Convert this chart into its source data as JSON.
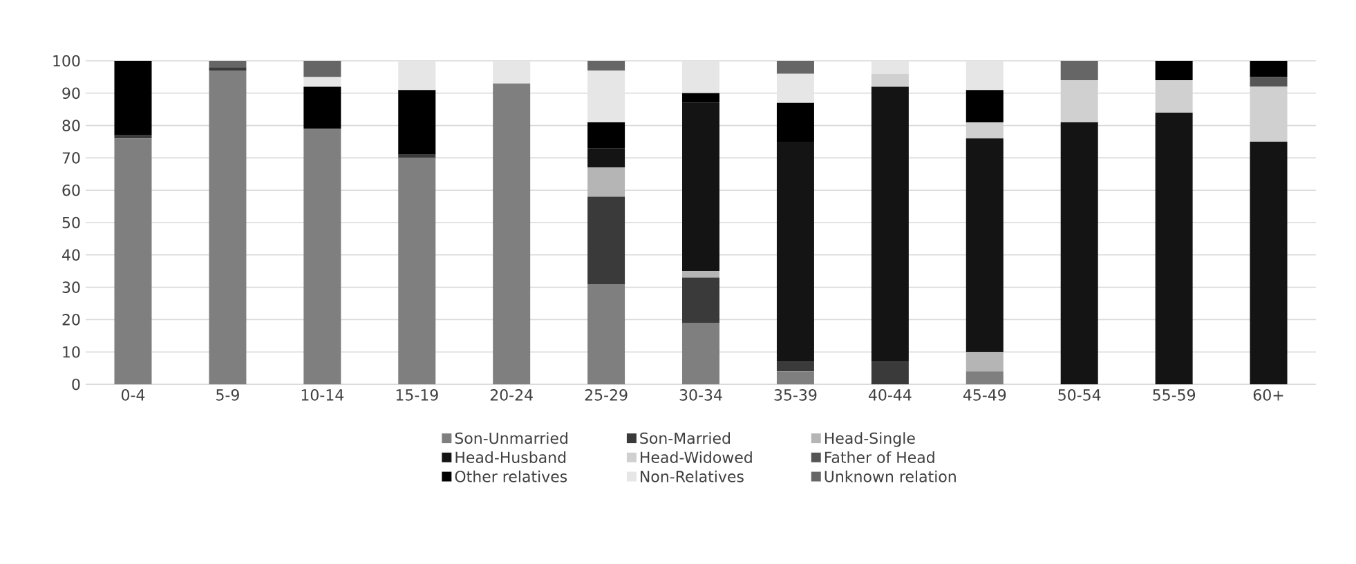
{
  "chart_data": {
    "type": "bar",
    "stacked": true,
    "categories": [
      "0-4",
      "5-9",
      "10-14",
      "15-19",
      "20-24",
      "25-29",
      "30-34",
      "35-39",
      "40-44",
      "45-49",
      "50-54",
      "55-59",
      "60+"
    ],
    "series": [
      {
        "name": "Son-Unmarried",
        "color": "#7f7f7f",
        "values": [
          76,
          97,
          79,
          70,
          93,
          31,
          19,
          4,
          0,
          4,
          0,
          0,
          0
        ]
      },
      {
        "name": "Son-Married",
        "color": "#3a3a3a",
        "values": [
          1,
          1,
          0,
          1,
          0,
          27,
          14,
          3,
          7,
          0,
          0,
          0,
          0
        ]
      },
      {
        "name": "Head-Single",
        "color": "#b5b5b5",
        "values": [
          0,
          0,
          0,
          0,
          0,
          9,
          2,
          0,
          0,
          6,
          0,
          0,
          0
        ]
      },
      {
        "name": "Head-Husband",
        "color": "#141414",
        "values": [
          0,
          0,
          0,
          0,
          0,
          6,
          52,
          68,
          85,
          66,
          81,
          84,
          75
        ]
      },
      {
        "name": "Head-Widowed",
        "color": "#d0d0d0",
        "values": [
          0,
          0,
          0,
          0,
          0,
          0,
          0,
          0,
          4,
          5,
          13,
          10,
          17
        ]
      },
      {
        "name": "Father of Head",
        "color": "#555555",
        "values": [
          0,
          0,
          0,
          0,
          0,
          0,
          0,
          0,
          0,
          0,
          0,
          0,
          3
        ]
      },
      {
        "name": "Other relatives",
        "color": "#000000",
        "values": [
          23,
          0,
          13,
          20,
          0,
          8,
          3,
          12,
          0,
          10,
          0,
          6,
          5
        ]
      },
      {
        "name": "Non-Relatives",
        "color": "#e6e6e6",
        "values": [
          0,
          0,
          3,
          9,
          7,
          16,
          10,
          9,
          4,
          9,
          0,
          0,
          0
        ]
      },
      {
        "name": "Unknown relation",
        "color": "#666666",
        "values": [
          0,
          2,
          5,
          0,
          0,
          3,
          0,
          4,
          0,
          0,
          6,
          0,
          0
        ]
      }
    ],
    "ylim": [
      0,
      100
    ],
    "yticks": [
      0,
      10,
      20,
      30,
      40,
      50,
      60,
      70,
      80,
      90,
      100
    ],
    "grid": "y",
    "legend": "bottom"
  }
}
